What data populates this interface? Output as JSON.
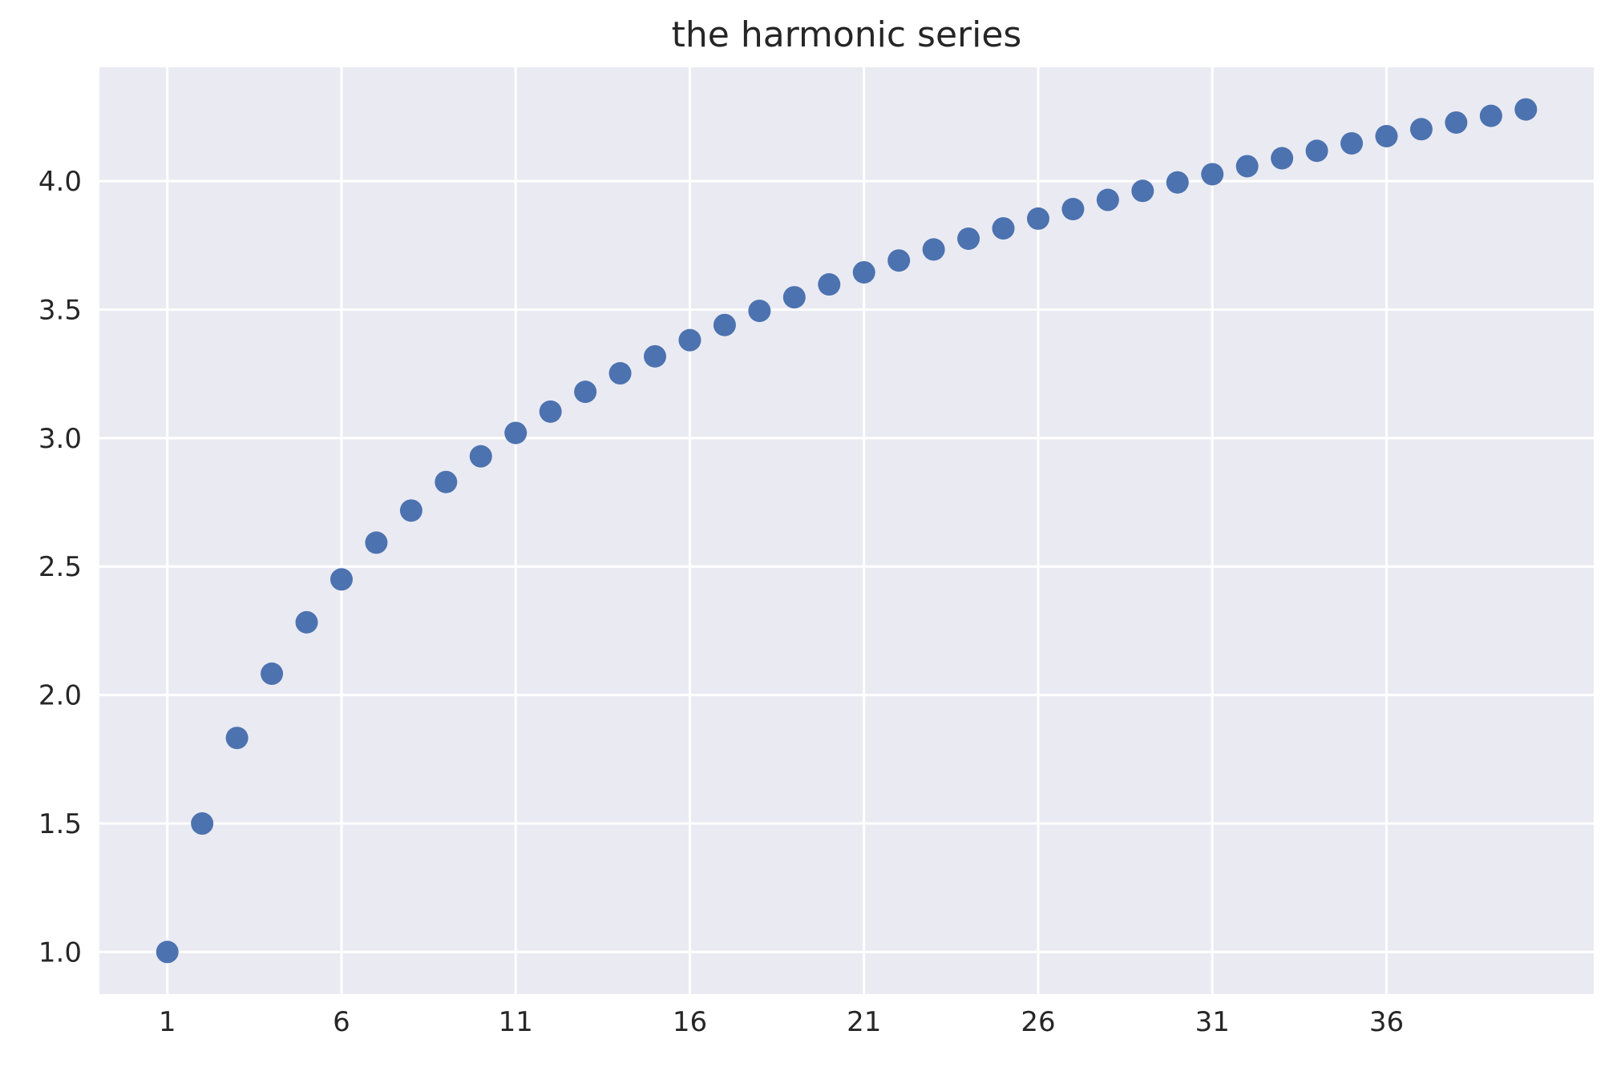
{
  "chart_data": {
    "type": "scatter",
    "title": "the harmonic series",
    "xlabel": "",
    "ylabel": "",
    "x": [
      1,
      2,
      3,
      4,
      5,
      6,
      7,
      8,
      9,
      10,
      11,
      12,
      13,
      14,
      15,
      16,
      17,
      18,
      19,
      20,
      21,
      22,
      23,
      24,
      25,
      26,
      27,
      28,
      29,
      30,
      31,
      32,
      33,
      34,
      35,
      36,
      37,
      38,
      39,
      40
    ],
    "series": [
      {
        "values": [
          1.0,
          1.5,
          1.833,
          2.083,
          2.283,
          2.45,
          2.593,
          2.718,
          2.829,
          2.929,
          3.02,
          3.103,
          3.18,
          3.252,
          3.318,
          3.381,
          3.44,
          3.495,
          3.548,
          3.598,
          3.645,
          3.691,
          3.734,
          3.776,
          3.816,
          3.854,
          3.891,
          3.927,
          3.962,
          3.995,
          4.027,
          4.058,
          4.089,
          4.118,
          4.147,
          4.175,
          4.202,
          4.228,
          4.254,
          4.279
        ],
        "color": "#4c72b0"
      }
    ],
    "xticks": [
      "1",
      "6",
      "11",
      "16",
      "21",
      "26",
      "31",
      "36"
    ],
    "yticks": [
      "1.0",
      "1.5",
      "2.0",
      "2.5",
      "3.0",
      "3.5",
      "4.0"
    ],
    "xlim": [
      -0.95,
      41.95
    ],
    "ylim": [
      0.836,
      4.443
    ],
    "grid": true,
    "legend": "none",
    "colors": {
      "plot_background": "#eaeaf2",
      "grid": "#ffffff",
      "text": "#262626"
    }
  }
}
